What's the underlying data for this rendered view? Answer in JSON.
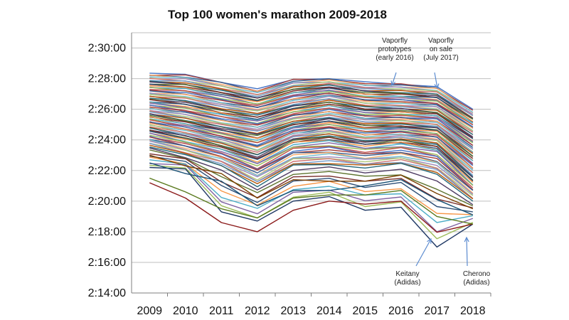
{
  "chart_data": {
    "type": "line",
    "title": "Top 100 women's marathon 2009-2018",
    "xlabel": "",
    "ylabel": "",
    "x": [
      "2009",
      "2010",
      "2011",
      "2012",
      "2013",
      "2014",
      "2015",
      "2016",
      "2017",
      "2018"
    ],
    "y_tick_labels": [
      "2:14:00",
      "2:16:00",
      "2:18:00",
      "2:20:00",
      "2:22:00",
      "2:24:00",
      "2:26:00",
      "2:28:00",
      "2:30:00"
    ],
    "y_ticks_seconds": [
      8040,
      8160,
      8280,
      8400,
      8520,
      8640,
      8760,
      8880,
      9000
    ],
    "ylim_seconds": [
      8040,
      9060
    ],
    "grid": true,
    "rank_series_note": "100 lines, one per world-list rank; values are finishing times in seconds",
    "highlight_series": [
      {
        "values": [
          8532,
          8526,
          8358,
          8322,
          8400,
          8418,
          8364,
          8376,
          8220,
          8310
        ],
        "color": "#1f3864"
      },
      {
        "values": [
          8472,
          8412,
          8316,
          8280,
          8364,
          8400,
          8388,
          8400,
          8278,
          8310
        ],
        "color": "#8b1a1a"
      },
      {
        "values": [
          8490,
          8436,
          8370,
          8334,
          8412,
          8424,
          8424,
          8442,
          8340,
          8310
        ],
        "color": "#5a7a1e"
      },
      {
        "values": [
          8550,
          8508,
          8478,
          8382,
          8442,
          8442,
          8460,
          8484,
          8406,
          8346
        ],
        "color": "#1a5276"
      },
      {
        "values": [
          8580,
          8538,
          8508,
          8412,
          8484,
          8478,
          8478,
          8502,
          8430,
          8370
        ],
        "color": "#7b3f00"
      }
    ],
    "band_series": {
      "rank1": [
        8532,
        8526,
        8358,
        8322,
        8400,
        8418,
        8364,
        8376,
        8220,
        8310
      ],
      "rank10": [
        8616,
        8580,
        8538,
        8460,
        8538,
        8544,
        8532,
        8544,
        8508,
        8400
      ],
      "rank25": [
        8670,
        8640,
        8604,
        8556,
        8628,
        8640,
        8616,
        8628,
        8604,
        8472
      ],
      "rank50": [
        8742,
        8718,
        8688,
        8664,
        8706,
        8724,
        8700,
        8700,
        8688,
        8580
      ],
      "rank75": [
        8820,
        8808,
        8778,
        8754,
        8790,
        8808,
        8784,
        8778,
        8766,
        8676
      ],
      "rank100": [
        8900,
        8895,
        8869,
        8837,
        8877,
        8882,
        8864,
        8860,
        8849,
        8757
      ]
    },
    "annotations": [
      {
        "text": [
          "Vaporfly",
          "prototypes",
          "(early 2016)"
        ],
        "target_x": "2016"
      },
      {
        "text": [
          "Vaporfly",
          "on sale",
          "(July 2017)"
        ],
        "target_x": "2017"
      },
      {
        "text": [
          "Keitany",
          "(Adidas)"
        ],
        "target_x": "2017"
      },
      {
        "text": [
          "Cherono",
          "(Adidas)"
        ],
        "target_x": "2018"
      }
    ],
    "palette": [
      "#4472c4",
      "#c0504d",
      "#9bbb59",
      "#8064a2",
      "#4bacc6",
      "#f79646",
      "#2c4d75",
      "#772c2a",
      "#5f7530",
      "#4d3b62",
      "#276a7c",
      "#b65708",
      "#729aca",
      "#cd7371",
      "#afc97a",
      "#9d87b8",
      "#6fbdd1",
      "#f9ab6b",
      "#3a5f8f",
      "#a33e3b"
    ]
  }
}
